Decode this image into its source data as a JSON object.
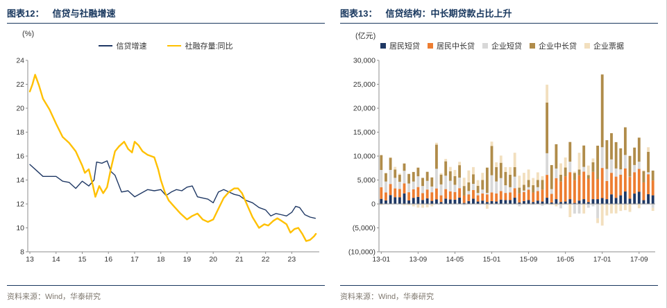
{
  "panels": {
    "left": {
      "title_prefix": "图表12：",
      "title": "信贷与社融增速",
      "source_prefix": "资料来源：",
      "source": "Wind，华泰研究"
    },
    "right": {
      "title_prefix": "图表13：",
      "title": "信贷结构：中长期贷款占比上升",
      "source_prefix": "资料来源：",
      "source": "Wind，华泰研究"
    }
  },
  "colors": {
    "header": "#17365D",
    "navy": "#1F3864",
    "yellow": "#FFC000",
    "orange": "#ED7D31",
    "gray": "#D8D8D8",
    "tan": "#B08C4A",
    "cream": "#F2DFBE",
    "axis": "#8C8C8C",
    "source_text": "#7E776E"
  },
  "chart_data": [
    {
      "type": "line",
      "title": "信贷与社融增速",
      "unit_label": "(%)",
      "ylim": [
        8,
        24
      ],
      "ytick_step": 2,
      "grid": false,
      "legend_position": "top",
      "x_range": [
        2012.92,
        2024.05
      ],
      "x_tick_pos": [
        2013,
        2014,
        2015,
        2016,
        2017,
        2018,
        2019,
        2020,
        2021,
        2022,
        2023
      ],
      "x_ticks": [
        "13",
        "14",
        "15",
        "16",
        "17",
        "18",
        "19",
        "20",
        "21",
        "22",
        "23"
      ],
      "series": [
        {
          "name": "信贷增速",
          "color": "#1F3864",
          "width": 1.4,
          "x": [
            2013.0,
            2013.25,
            2013.5,
            2013.75,
            2014.0,
            2014.25,
            2014.5,
            2014.75,
            2015.0,
            2015.25,
            2015.45,
            2015.55,
            2015.75,
            2015.95,
            2016.1,
            2016.25,
            2016.5,
            2016.75,
            2017.0,
            2017.25,
            2017.5,
            2017.75,
            2018.0,
            2018.2,
            2018.4,
            2018.6,
            2018.8,
            2019.0,
            2019.2,
            2019.4,
            2019.6,
            2019.8,
            2020.0,
            2020.2,
            2020.4,
            2020.6,
            2020.8,
            2021.0,
            2021.25,
            2021.5,
            2021.75,
            2022.0,
            2022.2,
            2022.4,
            2022.6,
            2022.8,
            2023.0,
            2023.15,
            2023.3,
            2023.5,
            2023.7,
            2023.9
          ],
          "y": [
            15.3,
            14.8,
            14.3,
            14.3,
            14.3,
            13.9,
            13.8,
            13.3,
            13.9,
            13.5,
            14.0,
            15.5,
            15.4,
            15.6,
            14.7,
            14.4,
            13.0,
            13.1,
            12.6,
            12.9,
            13.2,
            13.1,
            13.2,
            12.7,
            13.0,
            13.2,
            13.1,
            13.4,
            13.5,
            12.6,
            12.5,
            12.4,
            12.1,
            13.0,
            13.2,
            13.0,
            12.8,
            12.7,
            12.3,
            12.1,
            11.7,
            11.5,
            11.0,
            11.2,
            11.1,
            11.0,
            11.3,
            11.8,
            11.7,
            11.1,
            10.9,
            10.8
          ]
        },
        {
          "name": "社融存量:同比",
          "color": "#FFC000",
          "width": 2.4,
          "x": [
            2013.0,
            2013.1,
            2013.2,
            2013.35,
            2013.5,
            2013.75,
            2014.0,
            2014.25,
            2014.5,
            2014.75,
            2015.0,
            2015.1,
            2015.25,
            2015.4,
            2015.5,
            2015.65,
            2015.8,
            2015.95,
            2016.1,
            2016.25,
            2016.4,
            2016.6,
            2016.75,
            2016.9,
            2017.0,
            2017.15,
            2017.3,
            2017.5,
            2017.75,
            2017.9,
            2018.0,
            2018.15,
            2018.3,
            2018.5,
            2018.75,
            2019.0,
            2019.2,
            2019.4,
            2019.6,
            2019.8,
            2020.0,
            2020.2,
            2020.4,
            2020.6,
            2020.8,
            2020.95,
            2021.1,
            2021.3,
            2021.5,
            2021.75,
            2021.95,
            2022.1,
            2022.3,
            2022.45,
            2022.6,
            2022.8,
            2022.95,
            2023.1,
            2023.25,
            2023.4,
            2023.55,
            2023.7,
            2023.85,
            2023.92
          ],
          "y": [
            21.4,
            22.0,
            22.8,
            21.9,
            20.8,
            19.9,
            18.7,
            17.6,
            17.1,
            16.4,
            15.2,
            14.6,
            14.9,
            13.6,
            12.6,
            13.5,
            12.9,
            13.4,
            15.0,
            16.4,
            16.8,
            17.2,
            16.6,
            16.3,
            17.2,
            16.9,
            16.4,
            16.1,
            15.9,
            14.9,
            14.0,
            13.0,
            12.3,
            11.8,
            11.2,
            10.7,
            11.0,
            11.2,
            10.7,
            10.5,
            10.7,
            11.6,
            12.5,
            13.0,
            13.3,
            13.3,
            12.9,
            11.9,
            10.9,
            10.0,
            10.3,
            10.2,
            10.6,
            10.8,
            10.6,
            10.3,
            9.6,
            9.9,
            10.0,
            9.5,
            8.9,
            9.0,
            9.3,
            9.5
          ]
        }
      ]
    },
    {
      "type": "bar",
      "stacked": true,
      "title": "信贷结构：中长期贷款占比上升",
      "unit_label": "(亿元)",
      "ylim": [
        -10000,
        30000
      ],
      "ytick_step": 5000,
      "grid": false,
      "legend_position": "top",
      "x_tick_idx": [
        0,
        8,
        16,
        24,
        32,
        40,
        48,
        56
      ],
      "x_ticks": [
        "13-01",
        "13-09",
        "14-05",
        "15-01",
        "15-09",
        "16-05",
        "17-01",
        "17-09"
      ],
      "categories": [
        "13-01",
        "13-02",
        "13-03",
        "13-04",
        "13-05",
        "13-06",
        "13-07",
        "13-08",
        "13-09",
        "13-10",
        "13-11",
        "13-12",
        "14-01",
        "14-02",
        "14-03",
        "14-04",
        "14-05",
        "14-06",
        "14-07",
        "14-08",
        "14-09",
        "14-10",
        "14-11",
        "14-12",
        "15-01",
        "15-02",
        "15-03",
        "15-04",
        "15-05",
        "15-06",
        "15-07",
        "15-08",
        "15-09",
        "15-10",
        "15-11",
        "15-12",
        "16-01",
        "16-02",
        "16-03",
        "16-04",
        "16-05",
        "16-06",
        "16-07",
        "16-08",
        "16-09",
        "16-10",
        "16-11",
        "16-12",
        "17-01",
        "17-02",
        "17-03",
        "17-04",
        "17-05",
        "17-06",
        "17-07",
        "17-08",
        "17-09",
        "17-10",
        "17-11",
        "17-12"
      ],
      "series": [
        {
          "name": "居民短贷",
          "color": "#1F3864",
          "values": [
            1063,
            738,
            1852,
            1413,
            1390,
            2200,
            730,
            1280,
            1474,
            830,
            1149,
            640,
            940,
            400,
            1100,
            930,
            900,
            1300,
            200,
            600,
            1100,
            500,
            700,
            400,
            600,
            500,
            900,
            800,
            800,
            1300,
            300,
            600,
            800,
            400,
            700,
            500,
            1292,
            300,
            1000,
            400,
            500,
            1000,
            200,
            700,
            1000,
            400,
            1000,
            1000,
            1229,
            1000,
            2000,
            1269,
            1800,
            2600,
            1100,
            2165,
            2537,
            791,
            2028,
            1800
          ]
        },
        {
          "name": "居民中长贷",
          "color": "#ED7D31",
          "values": [
            2426,
            1661,
            2324,
            1834,
            1751,
            2098,
            1720,
            1770,
            2058,
            1417,
            1867,
            1800,
            2300,
            1400,
            2000,
            1700,
            1600,
            2000,
            1550,
            1400,
            1800,
            1300,
            1500,
            1600,
            1800,
            1700,
            1800,
            1500,
            1600,
            2000,
            1900,
            1900,
            2200,
            1998,
            2000,
            2500,
            4783,
            1800,
            4400,
            4280,
            5281,
            5639,
            4773,
            5286,
            5741,
            4891,
            5692,
            4217,
            6293,
            3804,
            4503,
            4441,
            4326,
            4833,
            4544,
            4470,
            4786,
            3710,
            4178,
            3112
          ]
        },
        {
          "name": "企业短贷",
          "color": "#D8D8D8",
          "values": [
            3612,
            2286,
            2929,
            2209,
            1487,
            2624,
            1820,
            1626,
            2255,
            1500,
            1800,
            1200,
            4100,
            2277,
            2800,
            2200,
            1500,
            2200,
            -250,
            700,
            1300,
            500,
            800,
            300,
            3600,
            2500,
            2700,
            1600,
            1100,
            2400,
            -500,
            300,
            500,
            -200,
            800,
            -400,
            4522,
            1000,
            2000,
            -925,
            -121,
            2200,
            -2011,
            -2000,
            1000,
            -800,
            -500,
            -3000,
            4331,
            2500,
            2800,
            1700,
            1100,
            2800,
            63,
            1500,
            1500,
            -113,
            410,
            -816
          ]
        },
        {
          "name": "企业中长贷",
          "color": "#B08C4A",
          "values": [
            3099,
            1748,
            2530,
            1750,
            1455,
            1532,
            2000,
            2005,
            1797,
            1700,
            1900,
            1900,
            5042,
            2053,
            3000,
            2000,
            1800,
            2600,
            2000,
            1800,
            2000,
            1500,
            2000,
            5289,
            6121,
            3000,
            3200,
            2800,
            2600,
            2000,
            1200,
            1200,
            1500,
            1519,
            1500,
            2000,
            10600,
            5022,
            5078,
            1415,
            1825,
            4105,
            1514,
            1209,
            4466,
            728,
            2018,
            6954,
            15200,
            6018,
            5482,
            5506,
            4396,
            5778,
            4332,
            3639,
            5029,
            2366,
            4275,
            2059
          ]
        },
        {
          "name": "企业票据",
          "color": "#F2DFBE",
          "values": [
            -252,
            -92,
            98,
            540,
            270,
            -262,
            -250,
            -500,
            -768,
            -800,
            -700,
            -500,
            400,
            300,
            500,
            900,
            1300,
            700,
            1726,
            2500,
            1500,
            1171,
            1500,
            -1000,
            900,
            1000,
            1500,
            1000,
            1600,
            3000,
            2500,
            2500,
            2200,
            1500,
            1600,
            800,
            3719,
            -200,
            -500,
            2388,
            2100,
            -2752,
            276,
            3500,
            -2000,
            2000,
            800,
            -1000,
            -4521,
            -2418,
            -1983,
            -1983,
            -1469,
            -1300,
            -1662,
            -126,
            -900,
            124,
            955,
            -630
          ]
        }
      ]
    }
  ]
}
